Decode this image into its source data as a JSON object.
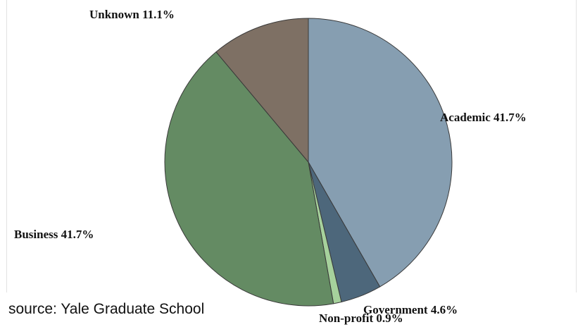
{
  "chart_data": {
    "type": "pie",
    "title": "",
    "start_angle_deg": 0,
    "direction": "clockwise",
    "slices": [
      {
        "name": "Academic",
        "value": 41.7,
        "label": "Academic 41.7%",
        "color": "#869eb1"
      },
      {
        "name": "Government",
        "value": 4.6,
        "label": "Government 4.6%",
        "color": "#4d677b"
      },
      {
        "name": "Non-profit",
        "value": 0.9,
        "label": "Non-profit 0.9%",
        "color": "#a6d19c"
      },
      {
        "name": "Business",
        "value": 41.7,
        "label": "Business 41.7%",
        "color": "#648b63"
      },
      {
        "name": "Unknown",
        "value": 11.1,
        "label": "Unknown 11.1%",
        "color": "#7e7064"
      }
    ]
  },
  "source": "source: Yale Graduate School"
}
